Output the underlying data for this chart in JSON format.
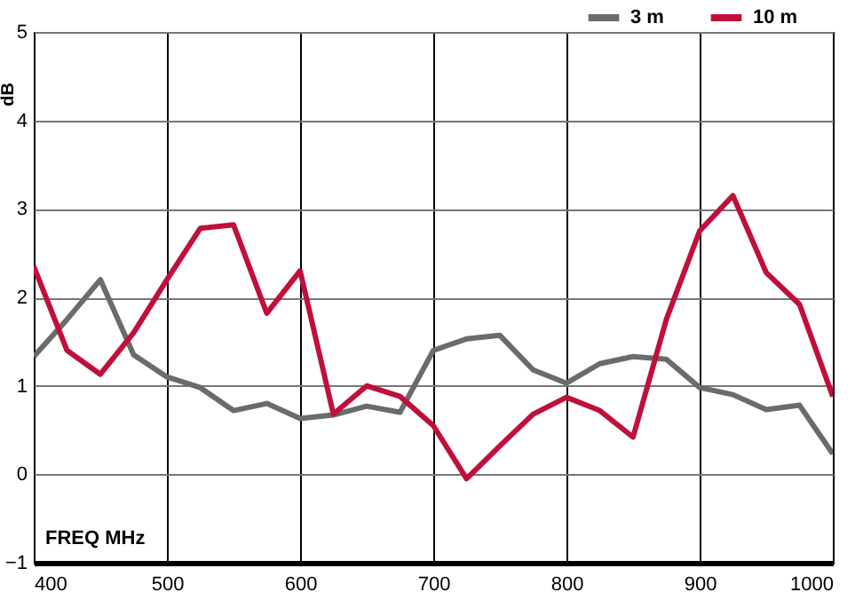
{
  "chart_data": {
    "type": "line",
    "xlabel": "FREQ  MHz",
    "ylabel": "dB",
    "x": [
      400,
      425,
      450,
      475,
      500,
      525,
      550,
      575,
      600,
      625,
      650,
      675,
      700,
      725,
      750,
      775,
      800,
      825,
      850,
      875,
      900,
      925,
      950,
      975,
      1000
    ],
    "series": [
      {
        "name": "3 m",
        "color": "#6b6b6b",
        "values": [
          1.33,
          1.75,
          2.2,
          1.35,
          1.1,
          0.98,
          0.72,
          0.8,
          0.63,
          0.67,
          0.77,
          0.7,
          1.4,
          1.53,
          1.57,
          1.18,
          1.03,
          1.25,
          1.33,
          1.3,
          0.98,
          0.9,
          0.73,
          0.78,
          0.23
        ]
      },
      {
        "name": "10 m",
        "color": "#c0103a",
        "values": [
          2.35,
          1.4,
          1.13,
          1.6,
          2.2,
          2.78,
          2.82,
          1.82,
          2.3,
          0.68,
          1.0,
          0.88,
          0.55,
          -0.05,
          0.32,
          0.68,
          0.87,
          0.72,
          0.42,
          1.75,
          2.75,
          3.15,
          2.28,
          1.92,
          0.88
        ]
      }
    ],
    "xlim": [
      400,
      1000
    ],
    "xticks": [
      400,
      500,
      600,
      700,
      800,
      900,
      1000
    ],
    "ylim": [
      -1,
      5
    ],
    "yticks": [
      -1,
      0,
      1,
      2,
      3,
      4,
      5
    ],
    "grid": true,
    "legend": "top right",
    "marker": "none",
    "line_style": "solid"
  }
}
